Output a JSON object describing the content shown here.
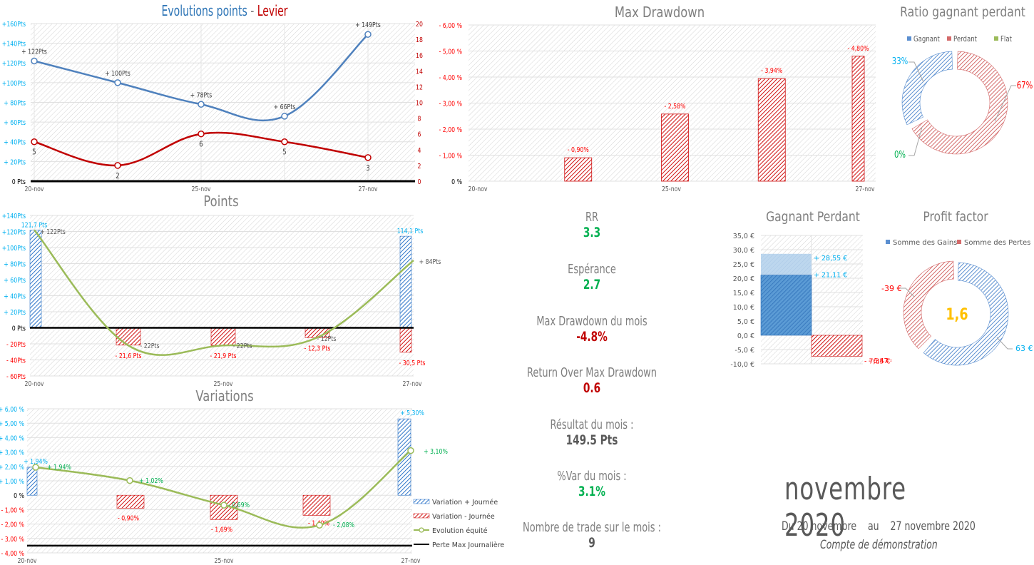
{
  "colors": {
    "blue": "#4f81bd",
    "blue_bar": "#2e75c9",
    "red": "#c00000",
    "red_bar": "#e02020",
    "green_line": "#9bbb59",
    "green_text": "#00b050",
    "cyan_text": "#00b0f0",
    "label_red": "#ff0000",
    "gray_title": "#7f7f7f",
    "dark_text": "#595959",
    "orange": "#ffc000"
  },
  "chart_data": [
    {
      "id": "evolutions",
      "type": "line",
      "title_part1": "Evolutions points",
      "title_sep": " - ",
      "title_part2": "Levier",
      "categories": [
        "20-nov",
        "",
        "25-nov",
        "",
        "27-nov"
      ],
      "x_tick_labels": [
        "20-nov",
        "25-nov",
        "27-nov"
      ],
      "y_left": {
        "ticks": [
          "0 Pts",
          "+ 20Pts",
          "+ 40Pts",
          "+ 60Pts",
          "+ 80Pts",
          "+100Pts",
          "+120Pts",
          "+140Pts",
          "+160Pts"
        ],
        "range": [
          0,
          160
        ]
      },
      "y_right": {
        "ticks": [
          "0",
          "2",
          "4",
          "6",
          "8",
          "10",
          "12",
          "14",
          "16",
          "18",
          "20"
        ],
        "range": [
          0,
          20
        ]
      },
      "series": [
        {
          "name": "Points",
          "axis": "left",
          "values": [
            122,
            100,
            78,
            66,
            149
          ],
          "labels": [
            "+ 122Pts",
            "+ 100Pts",
            "+ 78Pts",
            "+ 66Pts",
            "+ 149Pts"
          ]
        },
        {
          "name": "Levier",
          "axis": "right",
          "values": [
            5,
            2,
            6,
            5,
            3
          ],
          "labels": [
            "5",
            "2",
            "6",
            "5",
            "3"
          ]
        }
      ]
    },
    {
      "id": "max_drawdown",
      "type": "bar",
      "title": "Max Drawdown",
      "x_tick_labels": [
        "20-nov",
        "25-nov",
        "27-nov"
      ],
      "categories": [
        "",
        "",
        "25-nov",
        "",
        "27-nov"
      ],
      "values": [
        0,
        0.9,
        2.58,
        3.94,
        4.8
      ],
      "labels": [
        "",
        "- 0,90%",
        "- 2,58%",
        "- 3,94%",
        "- 4,80%"
      ],
      "y_ticks": [
        "0 %",
        "- 1,00 %",
        "- 2,00 %",
        "- 3,00 %",
        "- 4,00 %",
        "- 5,00 %",
        "- 6,00 %"
      ],
      "ylim": [
        0,
        6
      ]
    },
    {
      "id": "ratio",
      "type": "pie",
      "title": "Ratio gagnant perdant",
      "legend": [
        "Gagnant",
        "Perdant",
        "Flat"
      ],
      "values": [
        33,
        67,
        0
      ],
      "labels": [
        "33%",
        "67%",
        "0%"
      ]
    },
    {
      "id": "points",
      "type": "bar",
      "title": "Points",
      "x_tick_labels": [
        "20-nov",
        "25-nov",
        "27-nov"
      ],
      "y_ticks": [
        "- 60Pts",
        "- 40Pts",
        "- 20Pts",
        "0 Pts",
        "+ 20Pts",
        "+ 40Pts",
        "+ 60Pts",
        "+ 80Pts",
        "+100Pts",
        "+120Pts",
        "+140Pts"
      ],
      "ylim": [
        -60,
        140
      ],
      "series": [
        {
          "name": "Gains",
          "values": [
            121.7,
            0,
            0,
            0,
            114.1
          ],
          "labels": [
            "121,7 Pts",
            "",
            "",
            "",
            "114,1 Pts"
          ]
        },
        {
          "name": "Pertes",
          "values": [
            0,
            -21.6,
            -21.9,
            -12.3,
            -30.5
          ],
          "labels": [
            "",
            "- 21,6 Pts",
            "- 21,9 Pts",
            "- 12,3 Pts",
            "- 30,5 Pts"
          ]
        },
        {
          "name": "Net",
          "values": [
            122,
            -22,
            -22,
            -12,
            84
          ],
          "labels": [
            "+ 122Pts",
            "- 22Pts",
            "- 22Pts",
            "- 12Pts",
            "+ 84Pts"
          ]
        }
      ]
    },
    {
      "id": "variations",
      "type": "bar",
      "title": "Variations",
      "x_tick_labels": [
        "20-nov",
        "25-nov",
        "27-nov"
      ],
      "y_ticks": [
        "- 4,00 %",
        "- 3,00 %",
        "- 2,00 %",
        "- 1,00 %",
        "0 %",
        "+ 1,00 %",
        "+ 2,00 %",
        "+ 3,00 %",
        "+ 4,00 %",
        "+ 5,00 %",
        "+ 6,00 %"
      ],
      "ylim": [
        -4,
        6
      ],
      "max_daily_loss": -3.5,
      "series": [
        {
          "name": "Variation + Journée",
          "values": [
            1.94,
            0,
            0,
            0,
            5.3
          ],
          "labels": [
            "+ 1,94%",
            "",
            "",
            "",
            "+ 5,30%"
          ]
        },
        {
          "name": "Variation - Journée",
          "values": [
            0,
            -0.9,
            -1.69,
            -1.4,
            0
          ],
          "labels": [
            "",
            "- 0,90%",
            "- 1,69%",
            "- 1,40%",
            ""
          ]
        },
        {
          "name": "Evolution équité",
          "values": [
            1.94,
            1.02,
            -0.69,
            -2.08,
            3.1
          ],
          "labels": [
            "+ 1,94%",
            "+ 1,02%",
            "- 0,69%",
            "- 2,08%",
            "+ 3,10%"
          ]
        },
        {
          "name": "Perte Max Journalière",
          "values": [
            -3.5,
            -3.5,
            -3.5,
            -3.5,
            -3.5
          ]
        }
      ]
    },
    {
      "id": "gagnant_perdant",
      "type": "bar",
      "title": "Gagnant Perdant",
      "y_ticks": [
        "-10,0 €",
        "-5,0 €",
        "0,0 €",
        "5,0 €",
        "10,0 €",
        "15,0 €",
        "20,0 €",
        "25,0 €",
        "30,0 €",
        "35,0 €"
      ],
      "ylim": [
        -10,
        35
      ],
      "series": [
        {
          "name": "Gain max",
          "values": [
            28.55
          ],
          "label": "+ 28,55 €"
        },
        {
          "name": "Gain moyen",
          "values": [
            21.11
          ],
          "label": "+ 21,11 €"
        },
        {
          "name": "Perte moyenne",
          "values": [
            -6.47
          ],
          "label": "- 6,47 €"
        },
        {
          "name": "Perte max",
          "values": [
            -7.35
          ],
          "label": "- 7,35 €"
        }
      ]
    },
    {
      "id": "profit_factor",
      "type": "pie",
      "title": "Profit factor",
      "legend": [
        "Somme des Gains",
        "Somme des Pertes"
      ],
      "values": [
        63,
        39
      ],
      "labels": [
        "63 €",
        "-39 €"
      ],
      "center_value": "1,6"
    }
  ],
  "kpis": [
    {
      "label": "RR",
      "value": "3.3",
      "color": "#00b050"
    },
    {
      "label": "Espérance",
      "value": "2.7",
      "color": "#00b050"
    },
    {
      "label": "Max Drawdown du mois",
      "value": "-4.8%",
      "color": "#c00000"
    },
    {
      "label": "Return Over Max Drawdown",
      "value": "0.6",
      "color": "#c00000"
    },
    {
      "label": "Résultat du mois :",
      "value": "149.5 Pts",
      "color": "#595959"
    },
    {
      "label": "%Var du mois :",
      "value": "3.1%",
      "color": "#00b050"
    },
    {
      "label": "Nombre de trade sur le mois :",
      "value": "9",
      "color": "#595959"
    }
  ],
  "period": {
    "month": "novembre 2020",
    "range": "Du 20 novembre    au    27 novembre 2020",
    "account": "Compte de démonstration"
  }
}
